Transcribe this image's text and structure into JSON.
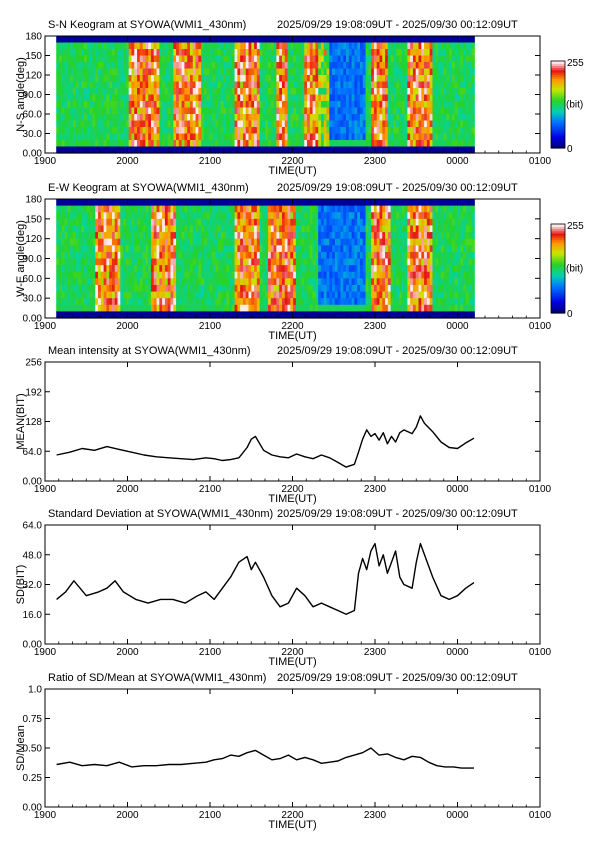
{
  "chart_data": [
    {
      "type": "heatmap",
      "title": "S-N Keogram at SYOWA(WMI1_430nm)",
      "time_range": "2025/09/29 19:08:09UT - 2025/09/30 00:12:09UT",
      "xlabel": "TIME(UT)",
      "ylabel": "N-S angle(deg)",
      "x_ticks": [
        "1900",
        "2000",
        "2100",
        "2200",
        "2300",
        "0000",
        "0100"
      ],
      "y_ticks": [
        "0.00",
        "30.0",
        "60.0",
        "90.0",
        "120",
        "150",
        "180"
      ],
      "xlim_hours": [
        19.0,
        25.0
      ],
      "ylim": [
        0,
        180
      ],
      "data_extent_hours": [
        19.136,
        24.203
      ],
      "colorbar": {
        "min_label": "0",
        "max_label": "255",
        "unit_label": "(bit)",
        "range": [
          0,
          255
        ]
      },
      "bright_bands_hours": [
        [
          20.0,
          20.4
        ],
        [
          20.55,
          20.9
        ],
        [
          21.3,
          21.6
        ],
        [
          21.8,
          21.95
        ],
        [
          22.15,
          22.45
        ],
        [
          22.95,
          23.15
        ],
        [
          23.4,
          23.7
        ]
      ]
    },
    {
      "type": "heatmap",
      "title": "E-W Keogram at SYOWA(WMI1_430nm)",
      "time_range": "2025/09/29 19:08:09UT - 2025/09/30 00:12:09UT",
      "xlabel": "TIME(UT)",
      "ylabel": "W-E angle(deg)",
      "x_ticks": [
        "1900",
        "2000",
        "2100",
        "2200",
        "2300",
        "0000",
        "0100"
      ],
      "y_ticks": [
        "0.00",
        "30.0",
        "60.0",
        "90.0",
        "120",
        "150",
        "180"
      ],
      "xlim_hours": [
        19.0,
        25.0
      ],
      "ylim": [
        0,
        180
      ],
      "data_extent_hours": [
        19.136,
        24.203
      ],
      "colorbar": {
        "min_label": "0",
        "max_label": "255",
        "unit_label": "(bit)",
        "range": [
          0,
          255
        ]
      },
      "bright_bands_hours": [
        [
          19.6,
          19.9
        ],
        [
          20.3,
          20.6
        ],
        [
          21.3,
          21.6
        ],
        [
          21.7,
          22.05
        ],
        [
          22.95,
          23.2
        ],
        [
          23.4,
          23.7
        ]
      ]
    },
    {
      "type": "line",
      "title": "Mean intensity at SYOWA(WMI1_430nm)",
      "time_range": "2025/09/29 19:08:09UT - 2025/09/30 00:12:09UT",
      "xlabel": "TIME(UT)",
      "ylabel": "MEAN(BIT)",
      "x_ticks": [
        "1900",
        "2000",
        "2100",
        "2200",
        "2300",
        "0000",
        "0100"
      ],
      "y_ticks": [
        "0.00",
        "64.0",
        "128",
        "192",
        "256"
      ],
      "xlim_hours": [
        19.0,
        25.0
      ],
      "ylim": [
        0,
        256
      ],
      "series": [
        {
          "x": [
            19.14,
            19.3,
            19.45,
            19.6,
            19.75,
            19.9,
            20.05,
            20.2,
            20.35,
            20.5,
            20.65,
            20.8,
            20.95,
            21.05,
            21.15,
            21.25,
            21.35,
            21.45,
            21.5,
            21.55,
            21.65,
            21.75,
            21.85,
            21.95,
            22.05,
            22.15,
            22.25,
            22.35,
            22.45,
            22.55,
            22.65,
            22.75,
            22.8,
            22.85,
            22.9,
            22.95,
            23.0,
            23.05,
            23.1,
            23.15,
            23.2,
            23.25,
            23.3,
            23.35,
            23.45,
            23.5,
            23.55,
            23.6,
            23.7,
            23.8,
            23.9,
            24.0,
            24.1,
            24.2
          ],
          "y": [
            56,
            62,
            70,
            66,
            74,
            68,
            62,
            56,
            52,
            50,
            48,
            46,
            50,
            48,
            44,
            46,
            50,
            72,
            90,
            96,
            66,
            56,
            52,
            50,
            58,
            52,
            48,
            56,
            50,
            40,
            30,
            36,
            62,
            90,
            110,
            96,
            102,
            88,
            104,
            80,
            96,
            84,
            104,
            110,
            102,
            116,
            140,
            124,
            106,
            84,
            72,
            70,
            82,
            92
          ]
        }
      ]
    },
    {
      "type": "line",
      "title": "Standard Deviation at SYOWA(WMI1_430nm)",
      "time_range": "2025/09/29 19:08:09UT - 2025/09/30 00:12:09UT",
      "xlabel": "TIME(UT)",
      "ylabel": "SD(BIT)",
      "x_ticks": [
        "1900",
        "2000",
        "2100",
        "2200",
        "2300",
        "0000",
        "0100"
      ],
      "y_ticks": [
        "0.00",
        "16.0",
        "32.0",
        "48.0",
        "64.0"
      ],
      "xlim_hours": [
        19.0,
        25.0
      ],
      "ylim": [
        0,
        64
      ],
      "series": [
        {
          "x": [
            19.14,
            19.25,
            19.35,
            19.5,
            19.65,
            19.75,
            19.85,
            19.95,
            20.1,
            20.25,
            20.4,
            20.55,
            20.7,
            20.85,
            20.95,
            21.05,
            21.15,
            21.25,
            21.35,
            21.45,
            21.5,
            21.55,
            21.65,
            21.75,
            21.85,
            21.95,
            22.05,
            22.15,
            22.25,
            22.35,
            22.45,
            22.55,
            22.65,
            22.75,
            22.8,
            22.85,
            22.9,
            22.95,
            23.0,
            23.05,
            23.1,
            23.15,
            23.2,
            23.25,
            23.3,
            23.35,
            23.45,
            23.5,
            23.55,
            23.6,
            23.7,
            23.8,
            23.9,
            24.0,
            24.1,
            24.2
          ],
          "y": [
            24,
            28,
            34,
            26,
            28,
            30,
            34,
            28,
            24,
            22,
            24,
            24,
            22,
            26,
            28,
            24,
            30,
            36,
            44,
            47,
            40,
            44,
            36,
            26,
            20,
            22,
            30,
            26,
            20,
            22,
            20,
            18,
            16,
            18,
            38,
            46,
            40,
            50,
            54,
            42,
            48,
            38,
            44,
            50,
            36,
            32,
            30,
            44,
            54,
            48,
            36,
            26,
            24,
            26,
            30,
            33
          ]
        }
      ]
    },
    {
      "type": "line",
      "title": "Ratio of SD/Mean at SYOWA(WMI1_430nm)",
      "time_range": "2025/09/29 19:08:09UT - 2025/09/30 00:12:09UT",
      "xlabel": "TIME(UT)",
      "ylabel": "SD/Mean",
      "x_ticks": [
        "1900",
        "2000",
        "2100",
        "2200",
        "2300",
        "0000",
        "0100"
      ],
      "y_ticks": [
        "0.00",
        "0.25",
        "0.50",
        "0.75",
        "1.0"
      ],
      "xlim_hours": [
        19.0,
        25.0
      ],
      "ylim": [
        0,
        1
      ],
      "series": [
        {
          "x": [
            19.14,
            19.3,
            19.45,
            19.6,
            19.75,
            19.9,
            20.05,
            20.2,
            20.35,
            20.5,
            20.65,
            20.8,
            20.95,
            21.05,
            21.15,
            21.25,
            21.35,
            21.45,
            21.55,
            21.65,
            21.75,
            21.85,
            21.95,
            22.05,
            22.15,
            22.25,
            22.35,
            22.45,
            22.55,
            22.65,
            22.75,
            22.85,
            22.95,
            23.05,
            23.15,
            23.25,
            23.35,
            23.45,
            23.55,
            23.65,
            23.75,
            23.85,
            23.95,
            24.05,
            24.2
          ],
          "y": [
            0.36,
            0.38,
            0.35,
            0.36,
            0.35,
            0.38,
            0.34,
            0.35,
            0.35,
            0.36,
            0.36,
            0.37,
            0.38,
            0.4,
            0.41,
            0.44,
            0.43,
            0.46,
            0.48,
            0.44,
            0.4,
            0.41,
            0.44,
            0.4,
            0.42,
            0.4,
            0.37,
            0.38,
            0.39,
            0.42,
            0.44,
            0.46,
            0.5,
            0.44,
            0.45,
            0.42,
            0.4,
            0.43,
            0.42,
            0.38,
            0.35,
            0.34,
            0.34,
            0.33,
            0.33
          ]
        }
      ]
    }
  ]
}
